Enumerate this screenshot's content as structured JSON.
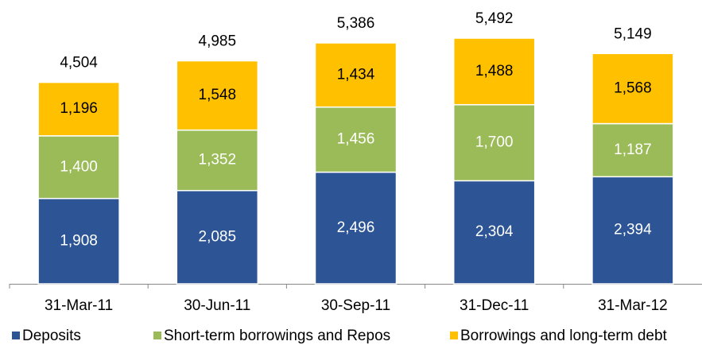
{
  "chart_data": {
    "type": "stacked_bar",
    "categories": [
      "31-Mar-11",
      "30-Jun-11",
      "30-Sep-11",
      "31-Dec-11",
      "31-Mar-12"
    ],
    "series": [
      {
        "name": "Deposits",
        "color": "#2d5596",
        "label_color": "#ffffff",
        "values": [
          1908,
          2085,
          2496,
          2304,
          2394
        ],
        "value_labels": [
          "1,908",
          "2,085",
          "2,496",
          "2,304",
          "2,394"
        ]
      },
      {
        "name": "Short-term borrowings and Repos",
        "color": "#9bbb59",
        "label_color": "#ffffff",
        "values": [
          1400,
          1352,
          1456,
          1700,
          1187
        ],
        "value_labels": [
          "1,400",
          "1,352",
          "1,456",
          "1,700",
          "1,187"
        ]
      },
      {
        "name": "Borrowings and long-term debt",
        "color": "#ffc000",
        "label_color": "#000000",
        "values": [
          1196,
          1548,
          1434,
          1488,
          1568
        ],
        "value_labels": [
          "1,196",
          "1,548",
          "1,434",
          "1,488",
          "1,568"
        ]
      }
    ],
    "totals": [
      4504,
      4985,
      5386,
      5492,
      5149
    ],
    "total_labels": [
      "4,504",
      "4,985",
      "5,386",
      "5,492",
      "5,149"
    ]
  }
}
